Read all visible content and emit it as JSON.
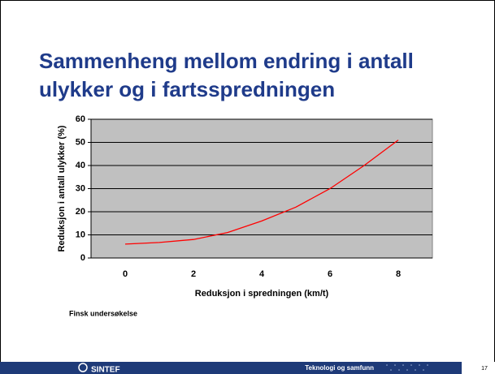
{
  "title": "Sammenheng mellom endring i antall ulykker og i fartsspredningen",
  "chart_data": {
    "type": "line",
    "x": [
      0,
      1,
      2,
      3,
      4,
      5,
      6,
      7,
      8
    ],
    "series": [
      {
        "name": "Reduksjon i antall ulykker",
        "color": "#ff0000",
        "values": [
          6,
          6.7,
          8,
          11,
          16,
          22,
          30,
          40,
          51
        ]
      }
    ],
    "xlim": [
      -1,
      9
    ],
    "xticks": [
      0,
      2,
      4,
      6,
      8
    ],
    "ylim": [
      0,
      60
    ],
    "yticks": [
      0,
      10,
      20,
      30,
      40,
      50,
      60
    ],
    "xlabel": "Reduksjon i spredningen (km/t)",
    "ylabel": "Reduksjon i antall ulykker (%)",
    "grid": true,
    "plot_background": "#c0c0c0"
  },
  "note": "Finsk undersøkelse",
  "footer": {
    "logo": "SINTEF",
    "unit": "Teknologi og samfunn",
    "page": "17"
  }
}
